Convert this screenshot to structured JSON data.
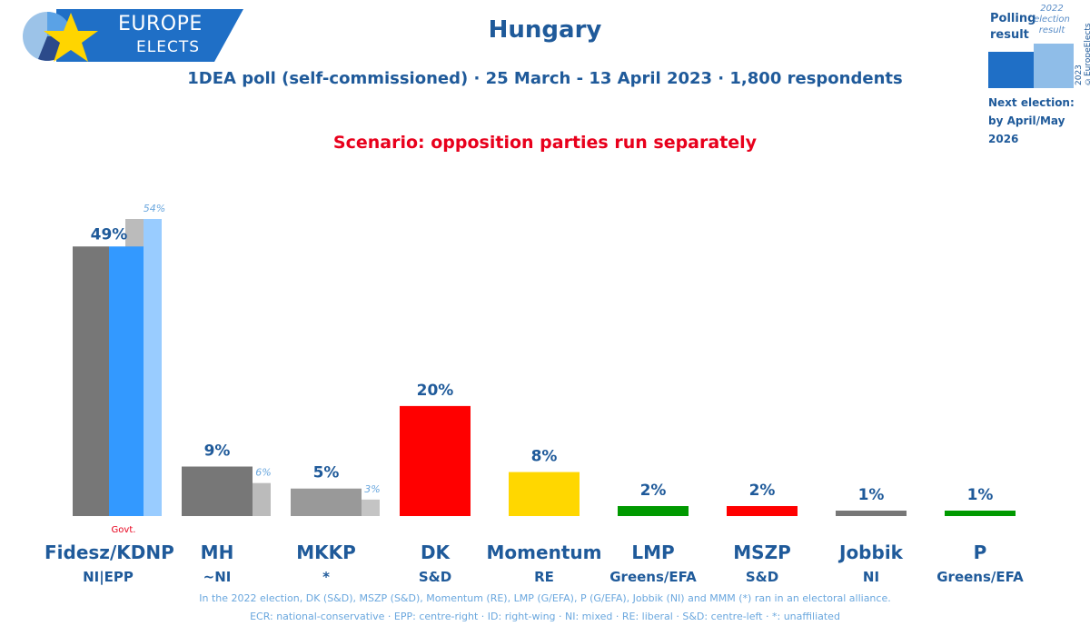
{
  "logo": {
    "line1": "EUROPE",
    "line2": "ELECTS"
  },
  "header": {
    "title": "Hungary",
    "subtitle": "1DEA poll (self-commissioned) · 25 March - 13 April 2023 · 1,800 respondents",
    "scenario": "Scenario: opposition parties run separately"
  },
  "legend": {
    "polling": "Polling result",
    "previous": "2022 election result",
    "copyright": "2023 ©EuropeElects",
    "next_election_label": "Next election:",
    "next_election_value": "by April/May 2026"
  },
  "govt_label": "Govt.",
  "chart_data": {
    "type": "bar",
    "categories": [
      "Fidesz/KDNP",
      "MH",
      "MKKP",
      "DK",
      "Momentum",
      "LMP",
      "MSZP",
      "Jobbik",
      "P"
    ],
    "groups": [
      "NI|EPP",
      "~NI",
      "*",
      "S&D",
      "RE",
      "Greens/EFA",
      "S&D",
      "NI",
      "Greens/EFA"
    ],
    "series": [
      {
        "values": [
          49,
          9,
          5,
          20,
          8,
          2,
          2,
          1,
          1
        ],
        "labels": [
          "49%",
          "9%",
          "5%",
          "20%",
          "8%",
          "2%",
          "2%",
          "1%",
          "1%"
        ]
      },
      {
        "values": [
          54,
          6,
          3,
          null,
          null,
          null,
          null,
          null,
          null
        ],
        "labels": [
          "54%",
          "6%",
          "3%",
          "",
          "",
          "",
          "",
          "",
          ""
        ]
      }
    ],
    "colors": [
      "#3399ff",
      "#777777",
      "#999999",
      "#ff0000",
      "#ffd700",
      "#009900",
      "#ff0000",
      "#777777",
      "#009900"
    ],
    "previous_colors": [
      "#99ccff",
      "#bbbbbb",
      "#c4c4c4"
    ],
    "ylim": [
      0,
      54
    ]
  },
  "footnotes": {
    "line1": "In the 2022 election, DK (S&D), MSZP (S&D), Momentum (RE), LMP (G/EFA), P (G/EFA), Jobbik (NI) and MMM (*) ran in an electoral alliance.",
    "line2": "ECR: national-conservative · EPP: centre-right · ID: right-wing · NI: mixed · RE: liberal · S&D: centre-left · *: unaffiliated"
  }
}
